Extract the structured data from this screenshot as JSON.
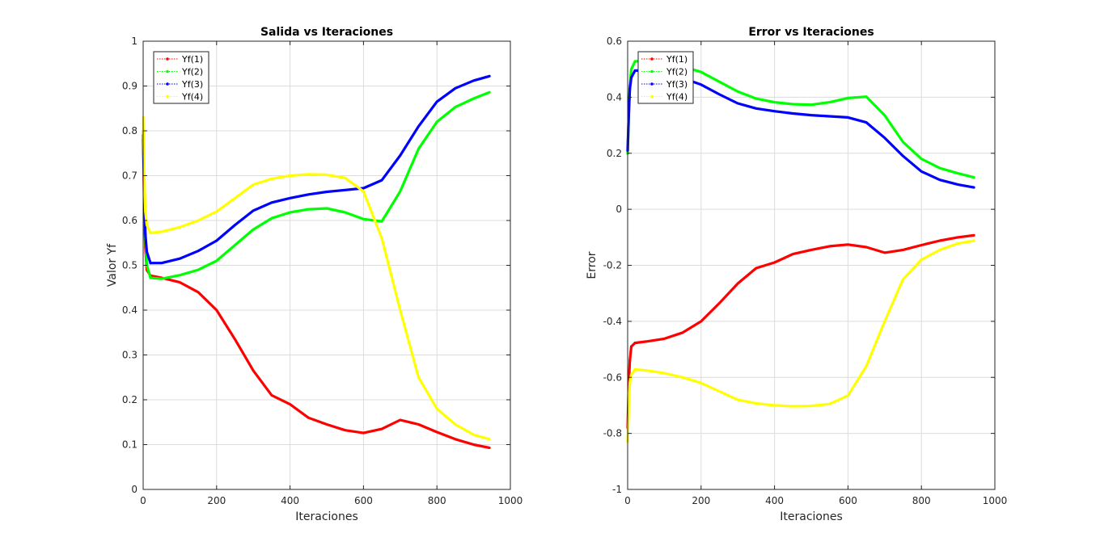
{
  "figure": {
    "background": "#ffffff"
  },
  "chart_data": [
    {
      "type": "line",
      "title": "Salida vs Iteraciones",
      "xlabel": "Iteraciones",
      "ylabel": "Valor Yf",
      "xlim": [
        0,
        1000
      ],
      "ylim": [
        0,
        1
      ],
      "xticks": [
        0,
        200,
        400,
        600,
        800,
        1000
      ],
      "yticks": [
        0,
        0.1,
        0.2,
        0.3,
        0.4,
        0.5,
        0.6,
        0.7,
        0.8,
        0.9,
        1
      ],
      "ytick_labels": [
        "0",
        "0.1",
        "0.2",
        "0.3",
        "0.4",
        "0.5",
        "0.6",
        "0.7",
        "0.8",
        "0.9",
        "1"
      ],
      "grid": true,
      "legend_position": "top-left",
      "series": [
        {
          "name": "Yf(1)",
          "color": "#ff0000",
          "points": [
            [
              0,
              0.78
            ],
            [
              3,
              0.62
            ],
            [
              6,
              0.54
            ],
            [
              10,
              0.49
            ],
            [
              20,
              0.477
            ],
            [
              50,
              0.472
            ],
            [
              100,
              0.462
            ],
            [
              150,
              0.44
            ],
            [
              200,
              0.4
            ],
            [
              250,
              0.335
            ],
            [
              300,
              0.265
            ],
            [
              350,
              0.21
            ],
            [
              400,
              0.19
            ],
            [
              450,
              0.16
            ],
            [
              500,
              0.145
            ],
            [
              550,
              0.132
            ],
            [
              600,
              0.126
            ],
            [
              650,
              0.135
            ],
            [
              700,
              0.155
            ],
            [
              750,
              0.145
            ],
            [
              800,
              0.128
            ],
            [
              850,
              0.112
            ],
            [
              900,
              0.1
            ],
            [
              943,
              0.093
            ]
          ]
        },
        {
          "name": "Yf(2)",
          "color": "#00ff00",
          "points": [
            [
              0,
              0.8
            ],
            [
              3,
              0.66
            ],
            [
              6,
              0.56
            ],
            [
              10,
              0.5
            ],
            [
              20,
              0.472
            ],
            [
              50,
              0.47
            ],
            [
              100,
              0.478
            ],
            [
              150,
              0.49
            ],
            [
              200,
              0.51
            ],
            [
              250,
              0.545
            ],
            [
              300,
              0.58
            ],
            [
              350,
              0.605
            ],
            [
              400,
              0.618
            ],
            [
              450,
              0.625
            ],
            [
              500,
              0.627
            ],
            [
              550,
              0.618
            ],
            [
              600,
              0.603
            ],
            [
              650,
              0.598
            ],
            [
              700,
              0.665
            ],
            [
              750,
              0.76
            ],
            [
              800,
              0.82
            ],
            [
              850,
              0.853
            ],
            [
              900,
              0.872
            ],
            [
              943,
              0.886
            ]
          ]
        },
        {
          "name": "Yf(3)",
          "color": "#0000ff",
          "points": [
            [
              0,
              0.79
            ],
            [
              3,
              0.66
            ],
            [
              6,
              0.57
            ],
            [
              10,
              0.53
            ],
            [
              20,
              0.505
            ],
            [
              50,
              0.505
            ],
            [
              100,
              0.515
            ],
            [
              150,
              0.532
            ],
            [
              200,
              0.555
            ],
            [
              250,
              0.59
            ],
            [
              300,
              0.622
            ],
            [
              350,
              0.64
            ],
            [
              400,
              0.65
            ],
            [
              450,
              0.658
            ],
            [
              500,
              0.664
            ],
            [
              550,
              0.668
            ],
            [
              600,
              0.672
            ],
            [
              650,
              0.69
            ],
            [
              700,
              0.745
            ],
            [
              750,
              0.81
            ],
            [
              800,
              0.865
            ],
            [
              850,
              0.895
            ],
            [
              900,
              0.912
            ],
            [
              943,
              0.922
            ]
          ]
        },
        {
          "name": "Yf(4)",
          "color": "#ffff00",
          "points": [
            [
              0,
              0.83
            ],
            [
              3,
              0.7
            ],
            [
              6,
              0.62
            ],
            [
              10,
              0.59
            ],
            [
              20,
              0.572
            ],
            [
              50,
              0.575
            ],
            [
              100,
              0.585
            ],
            [
              150,
              0.6
            ],
            [
              200,
              0.62
            ],
            [
              250,
              0.65
            ],
            [
              300,
              0.68
            ],
            [
              350,
              0.693
            ],
            [
              400,
              0.7
            ],
            [
              450,
              0.703
            ],
            [
              500,
              0.702
            ],
            [
              550,
              0.695
            ],
            [
              600,
              0.665
            ],
            [
              650,
              0.56
            ],
            [
              700,
              0.4
            ],
            [
              750,
              0.25
            ],
            [
              800,
              0.18
            ],
            [
              850,
              0.145
            ],
            [
              900,
              0.122
            ],
            [
              943,
              0.112
            ]
          ]
        }
      ]
    },
    {
      "type": "line",
      "title": "Error vs Iteraciones",
      "xlabel": "Iteraciones",
      "ylabel": "Error",
      "xlim": [
        0,
        1000
      ],
      "ylim": [
        -1,
        0.6
      ],
      "xticks": [
        0,
        200,
        400,
        600,
        800,
        1000
      ],
      "yticks": [
        -1,
        -0.8,
        -0.6,
        -0.4,
        -0.2,
        0,
        0.2,
        0.4,
        0.6
      ],
      "ytick_labels": [
        "-1",
        "-0.8",
        "-0.6",
        "-0.4",
        "-0.2",
        "0",
        "0.2",
        "0.4",
        "0.6"
      ],
      "grid": true,
      "legend_position": "top-left",
      "series": [
        {
          "name": "Yf(1)",
          "color": "#ff0000",
          "points": [
            [
              0,
              -0.78
            ],
            [
              3,
              -0.62
            ],
            [
              6,
              -0.54
            ],
            [
              10,
              -0.49
            ],
            [
              20,
              -0.477
            ],
            [
              50,
              -0.472
            ],
            [
              100,
              -0.462
            ],
            [
              150,
              -0.44
            ],
            [
              200,
              -0.4
            ],
            [
              250,
              -0.335
            ],
            [
              300,
              -0.265
            ],
            [
              350,
              -0.21
            ],
            [
              400,
              -0.19
            ],
            [
              450,
              -0.16
            ],
            [
              500,
              -0.145
            ],
            [
              550,
              -0.132
            ],
            [
              600,
              -0.126
            ],
            [
              650,
              -0.135
            ],
            [
              700,
              -0.155
            ],
            [
              750,
              -0.145
            ],
            [
              800,
              -0.128
            ],
            [
              850,
              -0.112
            ],
            [
              900,
              -0.1
            ],
            [
              943,
              -0.093
            ]
          ]
        },
        {
          "name": "Yf(2)",
          "color": "#00ff00",
          "points": [
            [
              0,
              0.2
            ],
            [
              3,
              0.34
            ],
            [
              6,
              0.44
            ],
            [
              10,
              0.5
            ],
            [
              20,
              0.528
            ],
            [
              50,
              0.53
            ],
            [
              100,
              0.522
            ],
            [
              150,
              0.51
            ],
            [
              200,
              0.49
            ],
            [
              250,
              0.455
            ],
            [
              300,
              0.42
            ],
            [
              350,
              0.395
            ],
            [
              400,
              0.382
            ],
            [
              450,
              0.375
            ],
            [
              500,
              0.373
            ],
            [
              550,
              0.382
            ],
            [
              600,
              0.397
            ],
            [
              650,
              0.402
            ],
            [
              700,
              0.335
            ],
            [
              750,
              0.24
            ],
            [
              800,
              0.18
            ],
            [
              850,
              0.147
            ],
            [
              900,
              0.128
            ],
            [
              943,
              0.114
            ]
          ]
        },
        {
          "name": "Yf(3)",
          "color": "#0000ff",
          "points": [
            [
              0,
              0.21
            ],
            [
              3,
              0.34
            ],
            [
              6,
              0.43
            ],
            [
              10,
              0.47
            ],
            [
              20,
              0.495
            ],
            [
              50,
              0.495
            ],
            [
              100,
              0.485
            ],
            [
              150,
              0.468
            ],
            [
              200,
              0.445
            ],
            [
              250,
              0.41
            ],
            [
              300,
              0.378
            ],
            [
              350,
              0.36
            ],
            [
              400,
              0.35
            ],
            [
              450,
              0.342
            ],
            [
              500,
              0.336
            ],
            [
              550,
              0.332
            ],
            [
              600,
              0.328
            ],
            [
              650,
              0.31
            ],
            [
              700,
              0.255
            ],
            [
              750,
              0.19
            ],
            [
              800,
              0.135
            ],
            [
              850,
              0.105
            ],
            [
              900,
              0.088
            ],
            [
              943,
              0.078
            ]
          ]
        },
        {
          "name": "Yf(4)",
          "color": "#ffff00",
          "points": [
            [
              0,
              -0.83
            ],
            [
              3,
              -0.7
            ],
            [
              6,
              -0.62
            ],
            [
              10,
              -0.59
            ],
            [
              20,
              -0.572
            ],
            [
              50,
              -0.575
            ],
            [
              100,
              -0.585
            ],
            [
              150,
              -0.6
            ],
            [
              200,
              -0.62
            ],
            [
              250,
              -0.65
            ],
            [
              300,
              -0.68
            ],
            [
              350,
              -0.693
            ],
            [
              400,
              -0.7
            ],
            [
              450,
              -0.703
            ],
            [
              500,
              -0.702
            ],
            [
              550,
              -0.695
            ],
            [
              600,
              -0.665
            ],
            [
              650,
              -0.56
            ],
            [
              700,
              -0.4
            ],
            [
              750,
              -0.25
            ],
            [
              800,
              -0.18
            ],
            [
              850,
              -0.145
            ],
            [
              900,
              -0.122
            ],
            [
              943,
              -0.112
            ]
          ]
        }
      ]
    }
  ]
}
